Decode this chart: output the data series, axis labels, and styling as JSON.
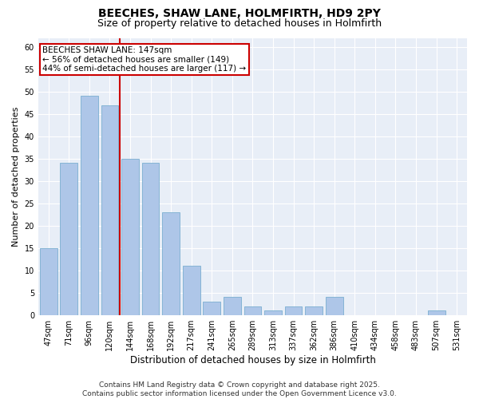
{
  "title": "BEECHES, SHAW LANE, HOLMFIRTH, HD9 2PY",
  "subtitle": "Size of property relative to detached houses in Holmfirth",
  "xlabel": "Distribution of detached houses by size in Holmfirth",
  "ylabel": "Number of detached properties",
  "categories": [
    "47sqm",
    "71sqm",
    "96sqm",
    "120sqm",
    "144sqm",
    "168sqm",
    "192sqm",
    "217sqm",
    "241sqm",
    "265sqm",
    "289sqm",
    "313sqm",
    "337sqm",
    "362sqm",
    "386sqm",
    "410sqm",
    "434sqm",
    "458sqm",
    "483sqm",
    "507sqm",
    "531sqm"
  ],
  "values": [
    15,
    34,
    49,
    47,
    35,
    34,
    23,
    11,
    3,
    4,
    2,
    1,
    2,
    2,
    4,
    0,
    0,
    0,
    0,
    1,
    0
  ],
  "bar_color": "#aec6e8",
  "bar_edge_color": "#7aaed0",
  "marker_line_color": "#cc0000",
  "marker_label": "BEECHES SHAW LANE: 147sqm",
  "annotation_line1": "← 56% of detached houses are smaller (149)",
  "annotation_line2": "44% of semi-detached houses are larger (117) →",
  "annotation_box_color": "#cc0000",
  "ylim": [
    0,
    62
  ],
  "yticks": [
    0,
    5,
    10,
    15,
    20,
    25,
    30,
    35,
    40,
    45,
    50,
    55,
    60
  ],
  "bg_color": "#e8eef7",
  "grid_color": "#ffffff",
  "footer": "Contains HM Land Registry data © Crown copyright and database right 2025.\nContains public sector information licensed under the Open Government Licence v3.0.",
  "title_fontsize": 10,
  "subtitle_fontsize": 9,
  "xlabel_fontsize": 8.5,
  "ylabel_fontsize": 8,
  "tick_fontsize": 7,
  "footer_fontsize": 6.5,
  "annot_fontsize": 7.5
}
